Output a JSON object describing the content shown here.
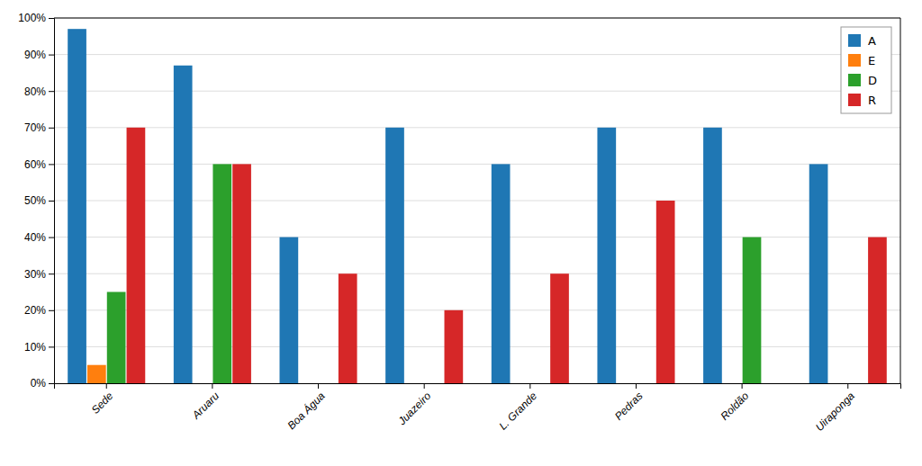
{
  "chart_data": {
    "type": "bar",
    "categories": [
      "Sede",
      "Aruaru",
      "Boa Água",
      "Juazeiro",
      "L. Grande",
      "Pedras",
      "Roldão",
      "Uiraponga"
    ],
    "series": [
      {
        "name": "A",
        "values": [
          97,
          87,
          40,
          70,
          60,
          70,
          70,
          60
        ]
      },
      {
        "name": "E",
        "values": [
          5,
          0,
          0,
          0,
          0,
          0,
          0,
          0
        ]
      },
      {
        "name": "D",
        "values": [
          25,
          60,
          0,
          0,
          0,
          0,
          40,
          0
        ]
      },
      {
        "name": "R",
        "values": [
          70,
          60,
          30,
          20,
          30,
          50,
          0,
          40
        ]
      }
    ],
    "ylim": [
      0,
      100
    ],
    "yticks": [
      {
        "value": 0,
        "label": "0%"
      },
      {
        "value": 10,
        "label": "10%"
      },
      {
        "value": 20,
        "label": "20%"
      },
      {
        "value": 30,
        "label": "30%"
      },
      {
        "value": 40,
        "label": "40%"
      },
      {
        "value": 50,
        "label": "50%"
      },
      {
        "value": 60,
        "label": "60%"
      },
      {
        "value": 70,
        "label": "70%"
      },
      {
        "value": 80,
        "label": "80%"
      },
      {
        "value": 90,
        "label": "90%"
      },
      {
        "value": 100,
        "label": "100%"
      }
    ],
    "grid": true,
    "legend": "upper right"
  }
}
